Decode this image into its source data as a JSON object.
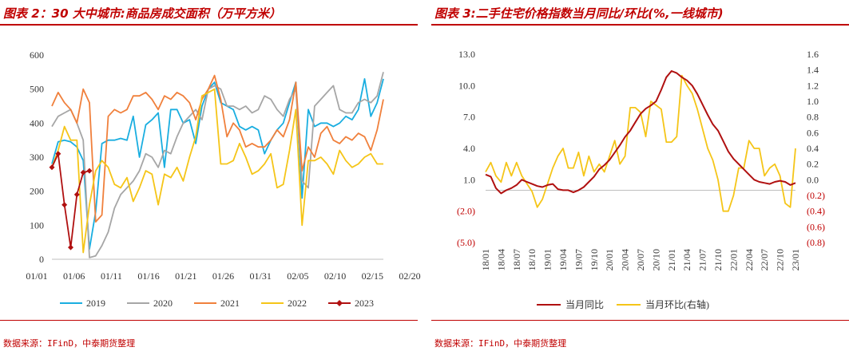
{
  "left_panel": {
    "title": "图表 2：30 大中城市:商品房成交面积（万平方米）",
    "source": "数据来源：IFinD，中泰期货整理"
  },
  "right_panel": {
    "title": "图表 3:二手住宅价格指数当月同比/环比(%,一线城市)",
    "source": "数据来源：IFinD，中泰期货整理"
  },
  "colors": {
    "red": "#c00000",
    "c2019": "#1aaee0",
    "c2020": "#a6a6a6",
    "c2021": "#f0803c",
    "c2022": "#f5c518",
    "c2023": "#b01010",
    "yoy": "#b01010",
    "mom": "#f5c518"
  },
  "chart_data": [
    {
      "type": "line",
      "x_ticks": [
        "01/01",
        "01/06",
        "01/11",
        "01/16",
        "01/21",
        "01/26",
        "01/31",
        "02/05",
        "02/10",
        "02/15",
        "02/20"
      ],
      "ylim": [
        0,
        600
      ],
      "y_ticks": [
        "0",
        "100",
        "200",
        "300",
        "400",
        "500",
        "600"
      ],
      "legend_position": "bottom",
      "series": [
        {
          "name": "2019",
          "color": "#1aaee0",
          "values": [
            280,
            345,
            350,
            345,
            330,
            290,
            30,
            140,
            340,
            350,
            350,
            355,
            350,
            420,
            300,
            395,
            410,
            430,
            270,
            440,
            440,
            400,
            410,
            340,
            450,
            500,
            520,
            460,
            450,
            440,
            390,
            380,
            390,
            380,
            310,
            350,
            380,
            400,
            460,
            520,
            180,
            440,
            390,
            400,
            400,
            390,
            400,
            420,
            410,
            440,
            530,
            420,
            460,
            530
          ]
        },
        {
          "name": "2020",
          "color": "#a6a6a6",
          "values": [
            390,
            420,
            430,
            440,
            400,
            350,
            5,
            10,
            40,
            80,
            150,
            190,
            210,
            230,
            260,
            310,
            300,
            270,
            320,
            310,
            360,
            400,
            420,
            440,
            410,
            500,
            510,
            500,
            450,
            450,
            440,
            450,
            430,
            440,
            480,
            470,
            440,
            420,
            470,
            500,
            230,
            210,
            450,
            470,
            490,
            510,
            440,
            430,
            430,
            460,
            470,
            460,
            480,
            550
          ]
        },
        {
          "name": "2021",
          "color": "#f0803c",
          "values": [
            450,
            490,
            460,
            440,
            400,
            500,
            460,
            110,
            130,
            420,
            440,
            430,
            440,
            480,
            480,
            490,
            470,
            440,
            480,
            470,
            490,
            480,
            460,
            410,
            470,
            500,
            540,
            470,
            360,
            400,
            380,
            330,
            340,
            330,
            330,
            350,
            380,
            360,
            410,
            520,
            260,
            330,
            300,
            370,
            390,
            350,
            340,
            360,
            350,
            370,
            360,
            320,
            380,
            470
          ]
        },
        {
          "name": "2022",
          "color": "#f5c518",
          "values": [
            270,
            320,
            390,
            350,
            350,
            20,
            160,
            260,
            290,
            270,
            220,
            210,
            240,
            170,
            210,
            260,
            250,
            160,
            250,
            240,
            270,
            230,
            300,
            360,
            480,
            490,
            500,
            280,
            280,
            290,
            340,
            300,
            250,
            260,
            280,
            310,
            210,
            220,
            320,
            440,
            100,
            290,
            290,
            300,
            280,
            250,
            320,
            290,
            270,
            280,
            300,
            310,
            280,
            280
          ]
        },
        {
          "name": "2023",
          "color": "#b01010",
          "values": [
            270,
            310,
            160,
            35,
            190,
            255,
            260
          ]
        }
      ]
    },
    {
      "type": "line",
      "x_ticks": [
        "18/01",
        "18/04",
        "18/07",
        "18/10",
        "19/01",
        "19/04",
        "19/07",
        "19/10",
        "20/01",
        "20/04",
        "20/07",
        "20/10",
        "21/01",
        "21/04",
        "21/07",
        "21/10",
        "22/01",
        "22/04",
        "22/07",
        "22/10",
        "23/01"
      ],
      "y_left_ticks": [
        "(5.0)",
        "(2.0)",
        "1.0",
        "4.0",
        "7.0",
        "10.0",
        "13.0"
      ],
      "y_left_lim": [
        -5,
        13
      ],
      "y_right_ticks": [
        "(0.8)",
        "(0.6)",
        "(0.4)",
        "(0.2)",
        "0.0",
        "0.2",
        "0.4",
        "0.6",
        "0.8",
        "1.0",
        "1.2",
        "1.4",
        "1.6"
      ],
      "y_right_lim": [
        -0.8,
        1.6
      ],
      "legend_position": "bottom",
      "series": [
        {
          "name": "当月同比",
          "axis": "left",
          "color": "#b01010",
          "values": [
            1.5,
            1.3,
            0.2,
            -0.3,
            0.0,
            0.2,
            0.5,
            1.0,
            0.8,
            0.6,
            0.4,
            0.3,
            0.5,
            0.6,
            0.1,
            0.0,
            0.0,
            -0.2,
            0.0,
            0.3,
            0.8,
            1.3,
            2.0,
            2.4,
            2.9,
            3.6,
            4.3,
            5.1,
            5.7,
            6.5,
            7.3,
            7.8,
            8.1,
            8.5,
            9.6,
            10.8,
            11.4,
            11.2,
            10.8,
            10.5,
            10.0,
            9.2,
            8.2,
            7.2,
            6.3,
            5.7,
            4.7,
            3.7,
            3.0,
            2.5,
            2.0,
            1.5,
            1.0,
            0.8,
            0.7,
            0.6,
            0.8,
            0.9,
            0.8,
            0.5,
            0.7
          ]
        },
        {
          "name": "当月环比(右轴)",
          "axis": "right",
          "color": "#f5c518",
          "values": [
            0.1,
            0.22,
            0.05,
            -0.03,
            0.22,
            0.05,
            0.22,
            0.05,
            -0.05,
            -0.15,
            -0.35,
            -0.25,
            -0.05,
            0.15,
            0.3,
            0.4,
            0.15,
            0.15,
            0.35,
            0.05,
            0.3,
            0.1,
            0.2,
            0.1,
            0.3,
            0.5,
            0.2,
            0.3,
            0.92,
            0.92,
            0.86,
            0.55,
            1.0,
            0.95,
            0.9,
            0.48,
            0.48,
            0.55,
            1.33,
            1.2,
            1.1,
            0.9,
            0.65,
            0.4,
            0.25,
            0.0,
            -0.4,
            -0.4,
            -0.2,
            0.15,
            0.15,
            0.5,
            0.4,
            0.4,
            0.05,
            0.15,
            0.2,
            0.05,
            -0.3,
            -0.35,
            0.4
          ]
        }
      ]
    }
  ]
}
